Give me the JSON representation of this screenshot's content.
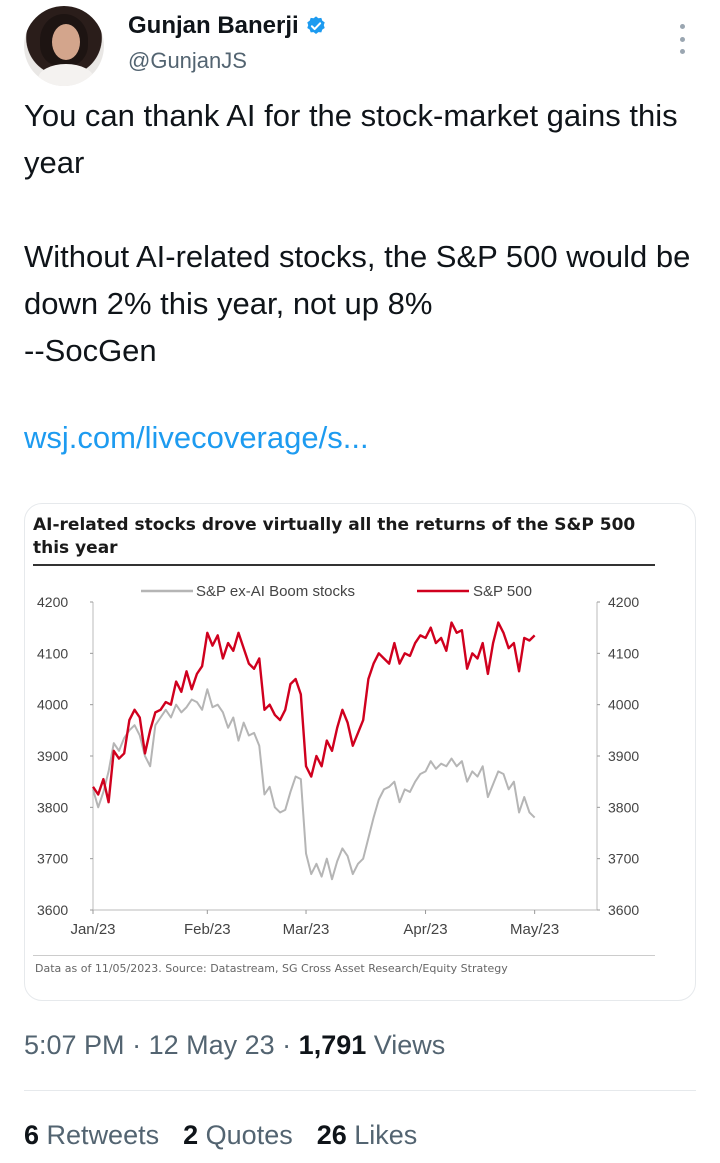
{
  "author": {
    "display_name": "Gunjan Banerji",
    "handle": "@GunjanJS",
    "verified": true
  },
  "tweet": {
    "text": "You can thank AI for the stock-market gains this year\n\nWithout AI-related stocks, the S&P 500 would be down 2% this year, not up 8%\n--SocGen",
    "link": "wsj.com/livecoverage/s..."
  },
  "meta": {
    "time": "5:07 PM",
    "date": "12 May 23",
    "views_count": "1,791",
    "views_label": "Views"
  },
  "stats": {
    "retweets_count": "6",
    "retweets_label": "Retweets",
    "quotes_count": "2",
    "quotes_label": "Quotes",
    "likes_count": "26",
    "likes_label": "Likes"
  },
  "colors": {
    "link": "#1d9bf0",
    "verified": "#1d9bf0",
    "sp500": "#d0001e",
    "ex_ai": "#b5b5b5"
  },
  "chart_data": {
    "type": "line",
    "title": "AI-related stocks drove virtually all the returns of the S&P 500 this year",
    "source": "Data as of 11/05/2023. Source: Datastream, SG Cross Asset Research/Equity Strategy",
    "x_tick_labels": [
      "Jan/23",
      "Feb/23",
      "Mar/23",
      "Apr/23",
      "May/23"
    ],
    "x_tick_positions": [
      0,
      22,
      41,
      64,
      85
    ],
    "y_left_ticks": [
      3600,
      3700,
      3800,
      3900,
      4000,
      4100,
      4200
    ],
    "y_right_ticks": [
      3600,
      3700,
      3800,
      3900,
      4000,
      4100,
      4200
    ],
    "ylim": [
      3600,
      4200
    ],
    "xlim": [
      0,
      97
    ],
    "legend_placement": "top-center",
    "grid": false,
    "series": [
      {
        "name": "S&P ex-AI Boom stocks",
        "color": "#b5b5b5",
        "values": [
          3835,
          3800,
          3830,
          3870,
          3925,
          3910,
          3935,
          3950,
          3960,
          3940,
          3900,
          3880,
          3960,
          3975,
          3990,
          3975,
          4000,
          3985,
          3995,
          4010,
          4005,
          3990,
          4030,
          3995,
          4000,
          3985,
          3955,
          3975,
          3930,
          3965,
          3940,
          3945,
          3920,
          3825,
          3840,
          3800,
          3790,
          3795,
          3830,
          3860,
          3855,
          3710,
          3670,
          3690,
          3665,
          3700,
          3660,
          3695,
          3720,
          3705,
          3670,
          3690,
          3700,
          3740,
          3780,
          3815,
          3835,
          3840,
          3850,
          3810,
          3835,
          3830,
          3850,
          3865,
          3870,
          3890,
          3875,
          3885,
          3880,
          3895,
          3880,
          3890,
          3850,
          3870,
          3860,
          3880,
          3820,
          3845,
          3870,
          3865,
          3835,
          3850,
          3790,
          3820,
          3790,
          3780
        ]
      },
      {
        "name": "S&P 500",
        "color": "#d0001e",
        "values": [
          3840,
          3825,
          3855,
          3810,
          3910,
          3895,
          3905,
          3970,
          3990,
          3975,
          3905,
          3950,
          3985,
          3990,
          4005,
          4000,
          4045,
          4025,
          4065,
          4030,
          4060,
          4075,
          4140,
          4115,
          4135,
          4090,
          4120,
          4105,
          4140,
          4110,
          4080,
          4070,
          4090,
          3990,
          4000,
          3980,
          3970,
          3990,
          4040,
          4050,
          4020,
          3880,
          3860,
          3900,
          3880,
          3930,
          3910,
          3955,
          3990,
          3965,
          3920,
          3945,
          3970,
          4050,
          4080,
          4100,
          4090,
          4080,
          4120,
          4080,
          4100,
          4095,
          4120,
          4135,
          4130,
          4150,
          4120,
          4130,
          4105,
          4160,
          4140,
          4145,
          4070,
          4100,
          4090,
          4120,
          4060,
          4120,
          4160,
          4140,
          4110,
          4120,
          4065,
          4130,
          4125,
          4135
        ]
      }
    ]
  }
}
